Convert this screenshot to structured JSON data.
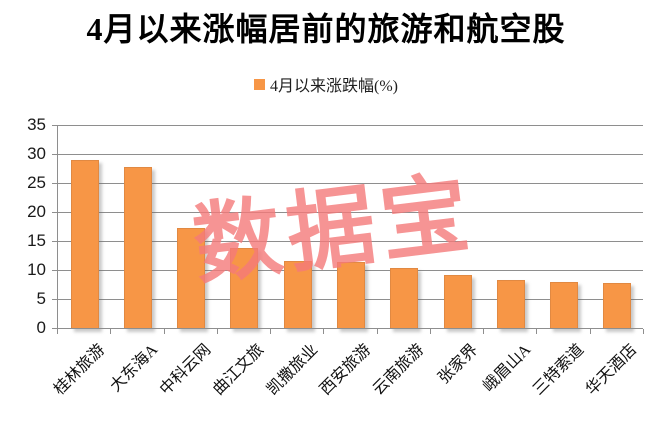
{
  "title": "4月以来涨幅居前的旅游和航空股",
  "legend": {
    "label": "4月以来涨跌幅(%)",
    "marker": "orange-square"
  },
  "watermark": "数据宝",
  "colors": {
    "bar_fill": "#F79646",
    "bar_border": "#E18942",
    "gridline": "#8E8E8E",
    "axis": "#8E8E8E",
    "watermark": "#F57A7A",
    "title_text": "#000000",
    "tick_text": "#1A1A1A"
  },
  "chart_data": {
    "type": "bar",
    "title": "4月以来涨幅居前的旅游和航空股",
    "series": [
      {
        "name": "4月以来涨跌幅(%)",
        "values": [
          29.0,
          27.8,
          17.3,
          13.8,
          11.6,
          11.4,
          10.3,
          9.1,
          8.3,
          7.9,
          7.8
        ]
      }
    ],
    "categories": [
      "桂林旅游",
      "大东海A",
      "中科云网",
      "曲江文旅",
      "凯撒旅业",
      "西安旅游",
      "云南旅游",
      "张家界",
      "峨眉山A",
      "三特索道",
      "华天酒店"
    ],
    "xlabel": "",
    "ylabel": "",
    "ylim": [
      0,
      35
    ],
    "yticks": [
      0,
      5,
      10,
      15,
      20,
      25,
      30,
      35
    ],
    "grid": true,
    "legend_position": "top",
    "x_label_rotation_deg": 45
  }
}
